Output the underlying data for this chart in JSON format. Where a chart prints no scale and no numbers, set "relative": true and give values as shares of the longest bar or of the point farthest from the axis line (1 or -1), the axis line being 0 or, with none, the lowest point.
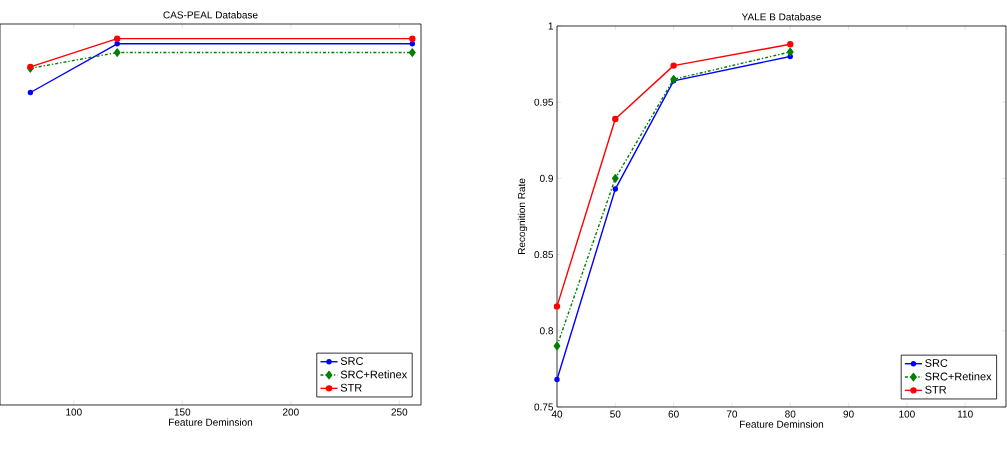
{
  "chart_data": [
    {
      "type": "line",
      "title": "CAS-PEAL Database",
      "xlabel": "Feature Deminsion",
      "relative": true,
      "tick_labels": "x",
      "x": [
        80,
        120,
        256
      ],
      "xlim": [
        66,
        260
      ],
      "xticks": [
        100,
        150,
        200,
        250
      ],
      "legend": "bottom right",
      "series": [
        {
          "name": "SRC",
          "color": "#0000ff",
          "marker": "circle",
          "line_style": "solid",
          "values": [
            0.853,
            0.986,
            0.986
          ]
        },
        {
          "name": "SRC+Retinex",
          "color": "#008000",
          "marker": "diamond",
          "line_style": "dashdot",
          "values": [
            0.919,
            0.962,
            0.962
          ]
        },
        {
          "name": "STR",
          "color": "#ff0000",
          "marker": "circle",
          "line_style": "solid",
          "values": [
            0.923,
            1,
            1
          ]
        }
      ]
    },
    {
      "type": "line",
      "title": "YALE B Database",
      "xlabel": "Feature Deminsion",
      "ylabel": "Recognition Rate",
      "x": [
        40,
        50,
        60,
        80
      ],
      "xlim": [
        40,
        117
      ],
      "xticks": [
        40,
        50,
        60,
        70,
        80,
        90,
        100,
        110
      ],
      "ylim": [
        0.75,
        1
      ],
      "yticks": [
        0.75,
        0.8,
        0.85,
        0.9,
        0.95,
        1
      ],
      "legend": "bottom right",
      "series": [
        {
          "name": "SRC",
          "color": "#0000ff",
          "marker": "circle",
          "line_style": "solid",
          "values": [
            0.768,
            0.893,
            0.964,
            0.98
          ]
        },
        {
          "name": "SRC+Retinex",
          "color": "#008000",
          "marker": "diamond",
          "line_style": "dashdot",
          "values": [
            0.79,
            0.9,
            0.965,
            0.983
          ]
        },
        {
          "name": "STR",
          "color": "#ff0000",
          "marker": "circle",
          "line_style": "solid",
          "values": [
            0.816,
            0.939,
            0.974,
            0.988
          ]
        }
      ]
    }
  ]
}
